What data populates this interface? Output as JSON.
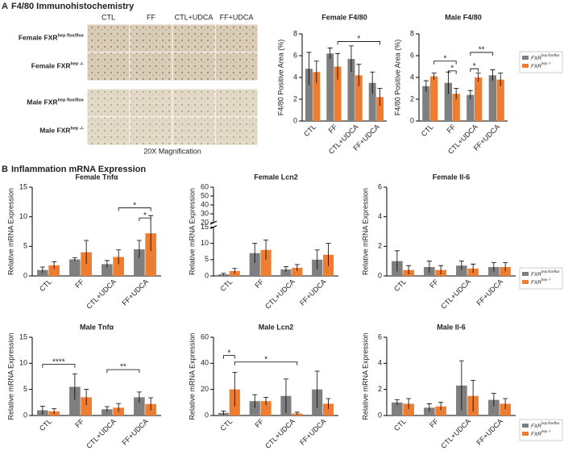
{
  "panel_a": {
    "label": "A",
    "title": "F4/80 Immunohistochemistry",
    "columns": [
      "CTL",
      "FF",
      "CTL+UDCA",
      "FF+UDCA"
    ],
    "rows": [
      {
        "text": "Female FXR",
        "sup": "hep flox/flox"
      },
      {
        "text": "Female FXR",
        "sup": "hep -/-"
      },
      {
        "text": "Male FXR",
        "sup": "hep flox/flox"
      },
      {
        "text": "Male FXR",
        "sup": "hep -/-"
      }
    ],
    "caption": "20X Magnification"
  },
  "panel_b": {
    "label": "B",
    "title": "Inflammation mRNA Expression"
  },
  "chart_data": [
    {
      "type": "bar",
      "title": "Female F4/80",
      "y_label": "F4/80 Positive Area (%)",
      "categories": [
        "CTL",
        "FF",
        "CTL+UDCA",
        "FF+UDCA"
      ],
      "series": [
        {
          "name": "FXR",
          "sup": "hep flox/flox",
          "color": "#7f7f7f",
          "values": [
            4.8,
            6.2,
            5.7,
            3.5
          ],
          "errors": [
            1.5,
            0.5,
            1.2,
            1.0
          ]
        },
        {
          "name": "FXR",
          "sup": "hep -/-",
          "color": "#ed7d31",
          "values": [
            4.5,
            5.0,
            4.2,
            2.2
          ],
          "errors": [
            1.0,
            1.2,
            1.0,
            0.8
          ]
        }
      ],
      "ylim": [
        0,
        8
      ],
      "yticks": [
        0,
        2,
        4,
        6,
        8
      ],
      "legend": false,
      "annotations": [
        {
          "label": "*",
          "y": 7.3,
          "from": [
            1,
            1
          ],
          "to": [
            3,
            1
          ]
        }
      ]
    },
    {
      "type": "bar",
      "title": "Male F4/80",
      "y_label": "F4/80 Positive Area (%)",
      "categories": [
        "CTL",
        "FF",
        "CTL+UDCA",
        "FF+UDCA"
      ],
      "series": [
        {
          "name": "FXR",
          "sup": "hep flox/flox",
          "color": "#7f7f7f",
          "values": [
            3.2,
            3.5,
            2.4,
            4.2
          ],
          "errors": [
            0.5,
            1.0,
            0.4,
            0.5
          ]
        },
        {
          "name": "FXR",
          "sup": "hep -/-",
          "color": "#ed7d31",
          "values": [
            4.1,
            2.5,
            4.0,
            3.8
          ],
          "errors": [
            0.3,
            0.5,
            0.4,
            0.6
          ]
        }
      ],
      "ylim": [
        0,
        8
      ],
      "yticks": [
        0,
        2,
        4,
        6,
        8
      ],
      "legend": true,
      "annotations": [
        {
          "label": "*",
          "y": 5.5,
          "from": [
            0,
            1
          ],
          "to": [
            1,
            1
          ]
        },
        {
          "label": "*",
          "y": 4.6,
          "from": [
            1,
            0
          ],
          "to": [
            1,
            1
          ]
        },
        {
          "label": "**",
          "y": 6.3,
          "from": [
            2,
            0
          ],
          "to": [
            3,
            0
          ]
        },
        {
          "label": "*",
          "y": 4.8,
          "from": [
            2,
            0
          ],
          "to": [
            2,
            1
          ]
        }
      ]
    },
    {
      "type": "bar",
      "title": "Female Tnfα",
      "y_label": "Relative mRNA Expression",
      "categories": [
        "CTL",
        "FF",
        "CTL+UDCA",
        "FF+UDCA"
      ],
      "series": [
        {
          "name": "FXR",
          "sup": "hep flox/flox",
          "color": "#7f7f7f",
          "values": [
            1.0,
            2.8,
            2.0,
            4.5
          ],
          "errors": [
            0.5,
            0.3,
            0.6,
            1.5
          ]
        },
        {
          "name": "FXR",
          "sup": "hep -/-",
          "color": "#ed7d31",
          "values": [
            1.8,
            4.0,
            3.2,
            7.2
          ],
          "errors": [
            0.6,
            2.0,
            1.2,
            3.0
          ]
        }
      ],
      "ylim": [
        0,
        15
      ],
      "yticks": [
        0,
        5,
        10,
        15
      ],
      "legend": false,
      "annotations": [
        {
          "label": "*",
          "y": 11.5,
          "from": [
            2,
            1
          ],
          "to": [
            3,
            1
          ]
        },
        {
          "label": "*",
          "y": 9.8,
          "from": [
            3,
            0
          ],
          "to": [
            3,
            1
          ]
        }
      ]
    },
    {
      "type": "bar",
      "title": "Female Lcn2",
      "y_label": "Relative mRNA Expression",
      "categories": [
        "CTL",
        "FF",
        "CTL+UDCA",
        "FF+UDCA"
      ],
      "series": [
        {
          "name": "FXR",
          "sup": "hep flox/flox",
          "color": "#7f7f7f",
          "values": [
            0.5,
            7.0,
            2.0,
            5.0
          ],
          "errors": [
            0.3,
            3.0,
            0.8,
            3.0
          ]
        },
        {
          "name": "FXR",
          "sup": "hep -/-",
          "color": "#ed7d31",
          "values": [
            1.5,
            8.0,
            2.5,
            6.5
          ],
          "errors": [
            0.8,
            3.0,
            1.0,
            3.5
          ]
        }
      ],
      "ylim": [
        0,
        60
      ],
      "yticks": [
        0,
        5,
        10,
        15,
        20,
        30,
        40,
        50,
        60
      ],
      "axis_break": [
        15,
        20
      ],
      "legend": false,
      "annotations": []
    },
    {
      "type": "bar",
      "title": "Female Il-6",
      "y_label": "Relative mRNA Expression",
      "categories": [
        "CTL",
        "FF",
        "CTL+UDCA",
        "FF+UDCA"
      ],
      "series": [
        {
          "name": "FXR",
          "sup": "hep flox/flox",
          "color": "#7f7f7f",
          "values": [
            1.0,
            0.6,
            0.7,
            0.6
          ],
          "errors": [
            0.7,
            0.4,
            0.3,
            0.3
          ]
        },
        {
          "name": "FXR",
          "sup": "hep -/-",
          "color": "#ed7d31",
          "values": [
            0.4,
            0.4,
            0.5,
            0.6
          ],
          "errors": [
            0.3,
            0.3,
            0.3,
            0.3
          ]
        }
      ],
      "ylim": [
        0,
        6
      ],
      "yticks": [
        0,
        2,
        4,
        6
      ],
      "legend": true,
      "annotations": []
    },
    {
      "type": "bar",
      "title": "Male Tnfα",
      "y_label": "Relative mRNA Expression",
      "categories": [
        "CTL",
        "FF",
        "CTL+UDCA",
        "FF+UDCA"
      ],
      "series": [
        {
          "name": "FXR",
          "sup": "hep flox/flox",
          "color": "#7f7f7f",
          "values": [
            1.0,
            5.5,
            1.2,
            3.5
          ],
          "errors": [
            0.8,
            2.5,
            0.5,
            1.0
          ]
        },
        {
          "name": "FXR",
          "sup": "hep -/-",
          "color": "#ed7d31",
          "values": [
            0.8,
            3.5,
            1.5,
            2.2
          ],
          "errors": [
            0.5,
            1.5,
            0.8,
            1.2
          ]
        }
      ],
      "ylim": [
        0,
        15
      ],
      "yticks": [
        0,
        5,
        10,
        15
      ],
      "legend": false,
      "annotations": [
        {
          "label": "****",
          "y": 9.8,
          "from": [
            0,
            0
          ],
          "to": [
            1,
            0
          ]
        },
        {
          "label": "**",
          "y": 8.8,
          "from": [
            2,
            0
          ],
          "to": [
            3,
            0
          ]
        }
      ]
    },
    {
      "type": "bar",
      "title": "Male Lcn2",
      "y_label": "Relative mRNA Expression",
      "categories": [
        "CTL",
        "FF",
        "CTL+UDCA",
        "FF+UDCA"
      ],
      "series": [
        {
          "name": "FXR",
          "sup": "hep flox/flox",
          "color": "#7f7f7f",
          "values": [
            2.0,
            11.0,
            15.0,
            20.0
          ],
          "errors": [
            1.5,
            5.0,
            13.0,
            14.0
          ]
        },
        {
          "name": "FXR",
          "sup": "hep -/-",
          "color": "#ed7d31",
          "values": [
            20.0,
            11.0,
            1.5,
            9.0
          ],
          "errors": [
            13.0,
            3.0,
            1.0,
            4.0
          ]
        }
      ],
      "ylim": [
        0,
        60
      ],
      "yticks": [
        0,
        20,
        40,
        60
      ],
      "legend": false,
      "annotations": [
        {
          "label": "*",
          "y": 46,
          "from": [
            0,
            0
          ],
          "to": [
            0,
            1
          ]
        },
        {
          "label": "*",
          "y": 41,
          "from": [
            0,
            1
          ],
          "to": [
            2,
            1
          ]
        }
      ]
    },
    {
      "type": "bar",
      "title": "Male Il-6",
      "y_label": "Relative mRNA Expression",
      "categories": [
        "CTL",
        "FF",
        "CTL+UDCA",
        "FF+UDCA"
      ],
      "series": [
        {
          "name": "FXR",
          "sup": "hep flox/flox",
          "color": "#7f7f7f",
          "values": [
            1.0,
            0.6,
            2.3,
            1.2
          ],
          "errors": [
            0.2,
            0.3,
            1.9,
            0.5
          ]
        },
        {
          "name": "FXR",
          "sup": "hep -/-",
          "color": "#ed7d31",
          "values": [
            0.9,
            0.7,
            1.5,
            0.9
          ],
          "errors": [
            0.4,
            0.3,
            1.2,
            0.4
          ]
        }
      ],
      "ylim": [
        0,
        6
      ],
      "yticks": [
        0,
        2,
        4,
        6
      ],
      "legend": true,
      "annotations": []
    }
  ]
}
